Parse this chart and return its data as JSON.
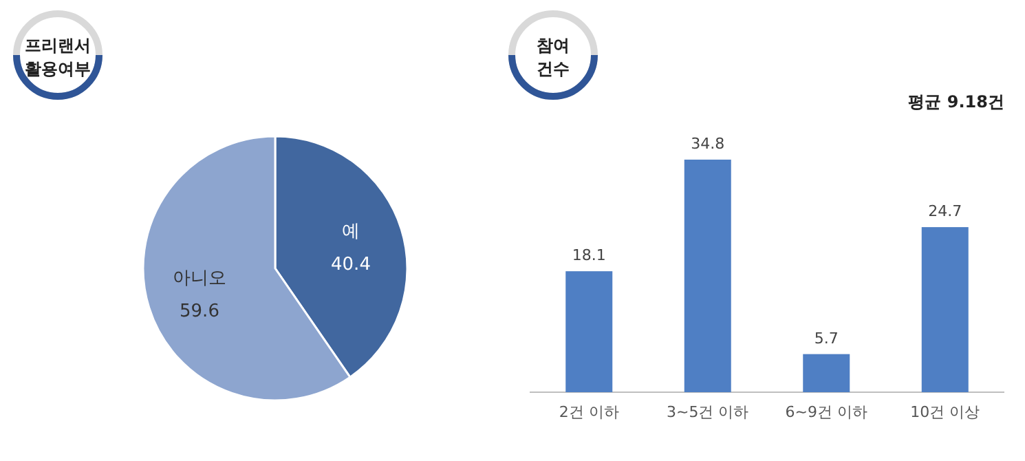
{
  "chart_data": [
    {
      "type": "pie",
      "title": "프리랜서\n활용여부",
      "categories": [
        "예",
        "아니오"
      ],
      "values": [
        40.4,
        59.6
      ],
      "colors": [
        "#41679f",
        "#8da5cf"
      ],
      "data_labels": true
    },
    {
      "type": "bar",
      "title": "참여\n건수",
      "annotations": [
        "평균 9.18건"
      ],
      "categories": [
        "2건 이하",
        "3~5건 이하",
        "6~9건 이하",
        "10건 이상"
      ],
      "values": [
        18.1,
        34.8,
        5.7,
        24.7
      ],
      "color": "#4f7fc4",
      "data_labels": true
    }
  ]
}
